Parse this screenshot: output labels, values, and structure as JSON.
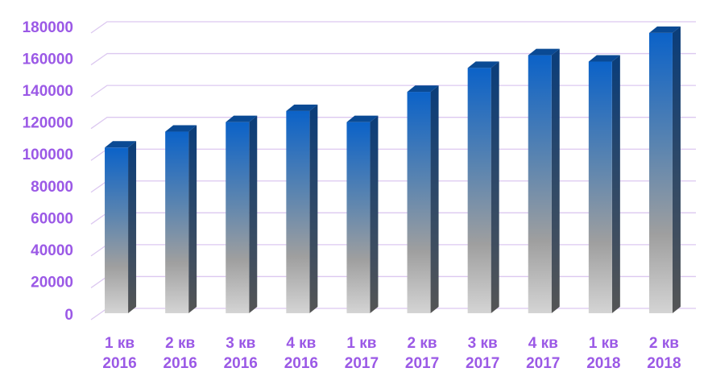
{
  "chart_data": {
    "type": "bar",
    "title": "",
    "xlabel": "",
    "ylabel": "",
    "categories": [
      [
        "1 кв",
        "2016"
      ],
      [
        "2 кв",
        "2016"
      ],
      [
        "3 кв",
        "2016"
      ],
      [
        "4 кв",
        "2016"
      ],
      [
        "1 кв",
        "2017"
      ],
      [
        "2 кв",
        "2017"
      ],
      [
        "3 кв",
        "2017"
      ],
      [
        "4 кв",
        "2017"
      ],
      [
        "1 кв",
        "2018"
      ],
      [
        "2 кв",
        "2018"
      ]
    ],
    "values": [
      104000,
      114000,
      120000,
      127000,
      120000,
      139000,
      154000,
      162000,
      158000,
      176000
    ],
    "ylim": [
      0,
      180000
    ],
    "yticks": [
      "0",
      "20000",
      "40000",
      "60000",
      "80000",
      "100000",
      "120000",
      "140000",
      "160000",
      "180000"
    ],
    "grid": true,
    "legend": "none",
    "style": "3d-column",
    "colors": {
      "label": "#9b59e6",
      "grid": "#dcc8f0",
      "bar_top": "#0b62c8",
      "bar_mid": "#5a84b0",
      "bar_low": "#9f9f9f",
      "bar_bottom": "#d4d4d4",
      "side_top": "#0a3d7a",
      "side_bottom": "#555555",
      "cap": "#0a4a94"
    }
  }
}
